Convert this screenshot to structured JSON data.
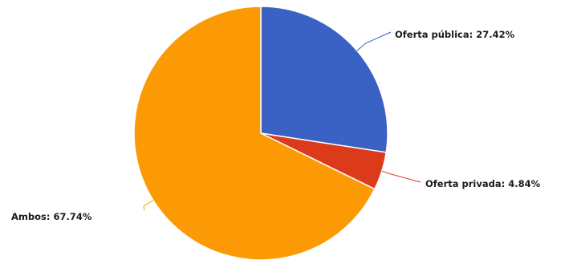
{
  "chart_data": {
    "type": "pie",
    "title": "",
    "slices": [
      {
        "name": "Oferta pública",
        "value": 27.42,
        "label": "Oferta pública: 27.42%",
        "color": "#3a62c4"
      },
      {
        "name": "Oferta privada",
        "value": 4.84,
        "label": "Oferta privada: 4.84%",
        "color": "#db3b1a"
      },
      {
        "name": "Ambos",
        "value": 67.74,
        "label": "Ambos: 67.74%",
        "color": "#fc9a06"
      }
    ],
    "start": "12 o'clock",
    "direction": "clockwise",
    "legend": "none"
  }
}
